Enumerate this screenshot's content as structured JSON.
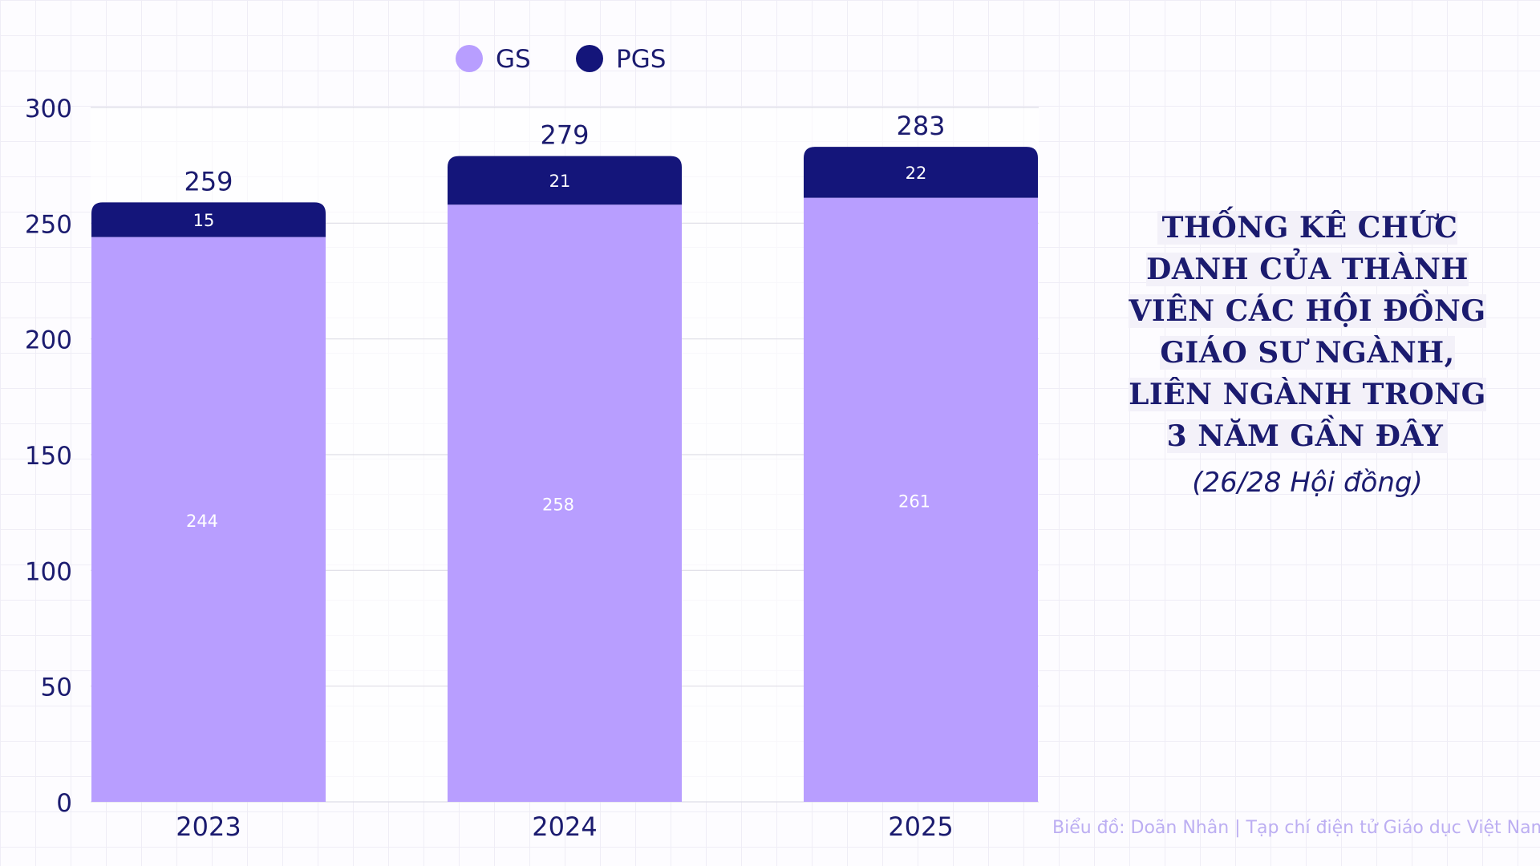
{
  "chart_data": {
    "type": "bar",
    "stacked": true,
    "categories": [
      "2023",
      "2024",
      "2025"
    ],
    "series": [
      {
        "name": "GS",
        "values": [
          244,
          258,
          261
        ],
        "color": "#b89eff"
      },
      {
        "name": "PGS",
        "values": [
          15,
          21,
          22
        ],
        "color": "#14157a"
      }
    ],
    "totals": [
      259,
      279,
      283
    ],
    "ylim": [
      0,
      300
    ],
    "yticks": [
      0,
      50,
      100,
      150,
      200,
      250,
      300
    ],
    "grid": true,
    "legend_placement": "top"
  },
  "title": "THỐNG KÊ CHỨC DANH CỦA THÀNH VIÊN CÁC HỘI ĐỒNG GIÁO SƯ NGÀNH, LIÊN NGÀNH TRONG 3 NĂM GẦN ĐÂY",
  "subtitle": "(26/28 Hội đồng)",
  "credit": "Biểu đồ: Doãn Nhân | Tạp chí điện tử Giáo dục Việt Nam",
  "colors": {
    "text": "#1b1b6f",
    "grid": "#dedde6",
    "label_light": "#ffffff"
  }
}
